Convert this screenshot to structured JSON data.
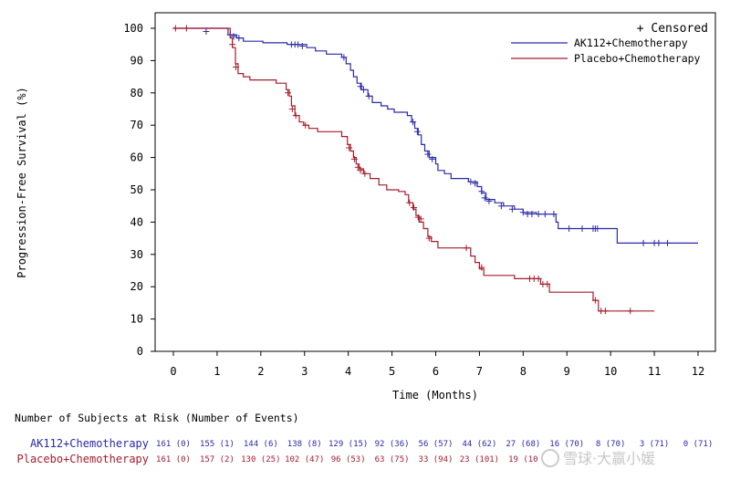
{
  "chart_data": {
    "type": "line",
    "subtype": "kaplan-meier step",
    "title": "",
    "xlabel": "Time (Months)",
    "ylabel": "Progression-Free Survival (%)",
    "xlim": [
      -0.5,
      12.3
    ],
    "ylim": [
      0,
      105
    ],
    "xticks": [
      0,
      1,
      2,
      3,
      4,
      5,
      6,
      7,
      8,
      9,
      10,
      11,
      12
    ],
    "yticks": [
      0,
      10,
      20,
      30,
      40,
      50,
      60,
      70,
      80,
      90,
      100
    ],
    "grid": false,
    "legend": {
      "placement": "top-right",
      "censored_label": "+ Censored",
      "entries": [
        "AK112+Chemotherapy",
        "Placebo+Chemotherapy"
      ]
    },
    "series": [
      {
        "name": "AK112+Chemotherapy",
        "color": "#2a2aa8",
        "steps": [
          [
            0,
            100
          ],
          [
            1.25,
            98
          ],
          [
            1.45,
            97
          ],
          [
            1.6,
            96
          ],
          [
            2.05,
            95.5
          ],
          [
            2.6,
            95
          ],
          [
            3.05,
            94
          ],
          [
            3.25,
            93
          ],
          [
            3.5,
            92
          ],
          [
            3.85,
            91
          ],
          [
            3.95,
            89
          ],
          [
            4.05,
            87
          ],
          [
            4.12,
            85
          ],
          [
            4.2,
            83
          ],
          [
            4.3,
            81
          ],
          [
            4.45,
            79
          ],
          [
            4.55,
            77
          ],
          [
            4.75,
            76
          ],
          [
            4.9,
            75
          ],
          [
            5.05,
            74
          ],
          [
            5.35,
            73
          ],
          [
            5.45,
            71
          ],
          [
            5.52,
            69
          ],
          [
            5.6,
            67
          ],
          [
            5.67,
            64
          ],
          [
            5.75,
            62
          ],
          [
            5.85,
            60
          ],
          [
            6.0,
            58
          ],
          [
            6.05,
            56
          ],
          [
            6.2,
            55
          ],
          [
            6.35,
            53.5
          ],
          [
            6.75,
            52.5
          ],
          [
            6.95,
            51
          ],
          [
            7.05,
            49
          ],
          [
            7.15,
            47
          ],
          [
            7.35,
            46
          ],
          [
            7.55,
            45
          ],
          [
            7.8,
            44
          ],
          [
            8.0,
            43
          ],
          [
            8.3,
            42.5
          ],
          [
            8.75,
            40
          ],
          [
            8.8,
            38
          ],
          [
            10.15,
            33.5
          ]
        ],
        "end_x": 12.0,
        "censored": [
          [
            0.75,
            99
          ],
          [
            1.3,
            98
          ],
          [
            1.38,
            97.5
          ],
          [
            1.5,
            97
          ],
          [
            2.7,
            95
          ],
          [
            2.78,
            95
          ],
          [
            2.85,
            95
          ],
          [
            2.95,
            94.5
          ],
          [
            3.9,
            91
          ],
          [
            4.28,
            82
          ],
          [
            4.35,
            81
          ],
          [
            4.47,
            79
          ],
          [
            5.48,
            71
          ],
          [
            5.58,
            68
          ],
          [
            5.82,
            61
          ],
          [
            5.92,
            59.5
          ],
          [
            6.8,
            52.5
          ],
          [
            6.9,
            52
          ],
          [
            7.05,
            49.5
          ],
          [
            7.12,
            47.5
          ],
          [
            7.22,
            46.5
          ],
          [
            7.5,
            45
          ],
          [
            7.75,
            44
          ],
          [
            8.0,
            43
          ],
          [
            8.1,
            42.5
          ],
          [
            8.2,
            42.5
          ],
          [
            8.35,
            42.5
          ],
          [
            8.5,
            42.5
          ],
          [
            8.7,
            42.5
          ],
          [
            9.05,
            38
          ],
          [
            9.35,
            38
          ],
          [
            9.6,
            38
          ],
          [
            9.65,
            38
          ],
          [
            9.7,
            38
          ],
          [
            10.75,
            33.5
          ],
          [
            11.0,
            33.5
          ],
          [
            11.1,
            33.5
          ],
          [
            11.3,
            33.5
          ]
        ]
      },
      {
        "name": "Placebo+Chemotherapy",
        "color": "#a61c2c",
        "steps": [
          [
            0,
            100
          ],
          [
            1.3,
            97
          ],
          [
            1.35,
            94
          ],
          [
            1.42,
            89
          ],
          [
            1.48,
            86
          ],
          [
            1.6,
            85
          ],
          [
            1.75,
            84
          ],
          [
            2.35,
            83
          ],
          [
            2.58,
            81
          ],
          [
            2.65,
            79
          ],
          [
            2.7,
            76
          ],
          [
            2.78,
            73
          ],
          [
            2.88,
            71
          ],
          [
            2.98,
            70
          ],
          [
            3.1,
            69
          ],
          [
            3.3,
            68
          ],
          [
            3.85,
            66.5
          ],
          [
            3.98,
            64
          ],
          [
            4.05,
            62
          ],
          [
            4.12,
            60
          ],
          [
            4.18,
            58
          ],
          [
            4.25,
            56.5
          ],
          [
            4.35,
            55
          ],
          [
            4.5,
            53.5
          ],
          [
            4.7,
            51.5
          ],
          [
            4.88,
            50
          ],
          [
            5.15,
            49.5
          ],
          [
            5.3,
            48.5
          ],
          [
            5.38,
            46
          ],
          [
            5.48,
            44
          ],
          [
            5.55,
            42
          ],
          [
            5.62,
            40
          ],
          [
            5.72,
            38
          ],
          [
            5.82,
            35.5
          ],
          [
            5.9,
            34
          ],
          [
            6.05,
            32
          ],
          [
            6.8,
            29.5
          ],
          [
            6.9,
            27.5
          ],
          [
            7.0,
            25.5
          ],
          [
            7.1,
            23.5
          ],
          [
            7.8,
            22.5
          ],
          [
            8.4,
            20.8
          ],
          [
            8.6,
            18.3
          ],
          [
            9.6,
            15.8
          ],
          [
            9.72,
            12.5
          ]
        ],
        "end_x": 11.0,
        "censored": [
          [
            0.05,
            100
          ],
          [
            0.3,
            100
          ],
          [
            1.35,
            95
          ],
          [
            1.43,
            88
          ],
          [
            2.62,
            80
          ],
          [
            2.72,
            75
          ],
          [
            2.8,
            73
          ],
          [
            3.02,
            70
          ],
          [
            4.02,
            63
          ],
          [
            4.14,
            59.5
          ],
          [
            4.22,
            57
          ],
          [
            4.28,
            56
          ],
          [
            4.38,
            55
          ],
          [
            5.4,
            46
          ],
          [
            5.5,
            44.5
          ],
          [
            5.6,
            41.5
          ],
          [
            5.66,
            41
          ],
          [
            5.85,
            35
          ],
          [
            6.7,
            32
          ],
          [
            7.05,
            26
          ],
          [
            8.15,
            22.5
          ],
          [
            8.25,
            22.5
          ],
          [
            8.35,
            22.5
          ],
          [
            8.45,
            20.8
          ],
          [
            8.55,
            20.8
          ],
          [
            9.65,
            15.8
          ],
          [
            9.78,
            12.5
          ],
          [
            9.88,
            12.5
          ],
          [
            10.45,
            12.5
          ]
        ]
      }
    ]
  },
  "risk_table": {
    "title": "Number of Subjects at Risk (Number of Events)",
    "rows": [
      {
        "label": "AK112+Chemotherapy",
        "color": "#2a2aa8",
        "cells": [
          "161 (0)",
          "155 (1)",
          "144 (6)",
          "138 (8)",
          "129 (15)",
          "92 (36)",
          "56 (57)",
          "44 (62)",
          "27 (68)",
          "16 (70)",
          "8 (70)",
          "3 (71)",
          "0 (71)"
        ]
      },
      {
        "label": "Placebo+Chemotherapy",
        "color": "#a61c2c",
        "cells": [
          "161 (0)",
          "157 (2)",
          "130 (25)",
          "102 (47)",
          "96 (53)",
          "63 (75)",
          "33 (94)",
          "23 (101)",
          "19 (10",
          "",
          "",
          "",
          ""
        ]
      }
    ]
  },
  "watermark": "雪球·大赢小媛"
}
